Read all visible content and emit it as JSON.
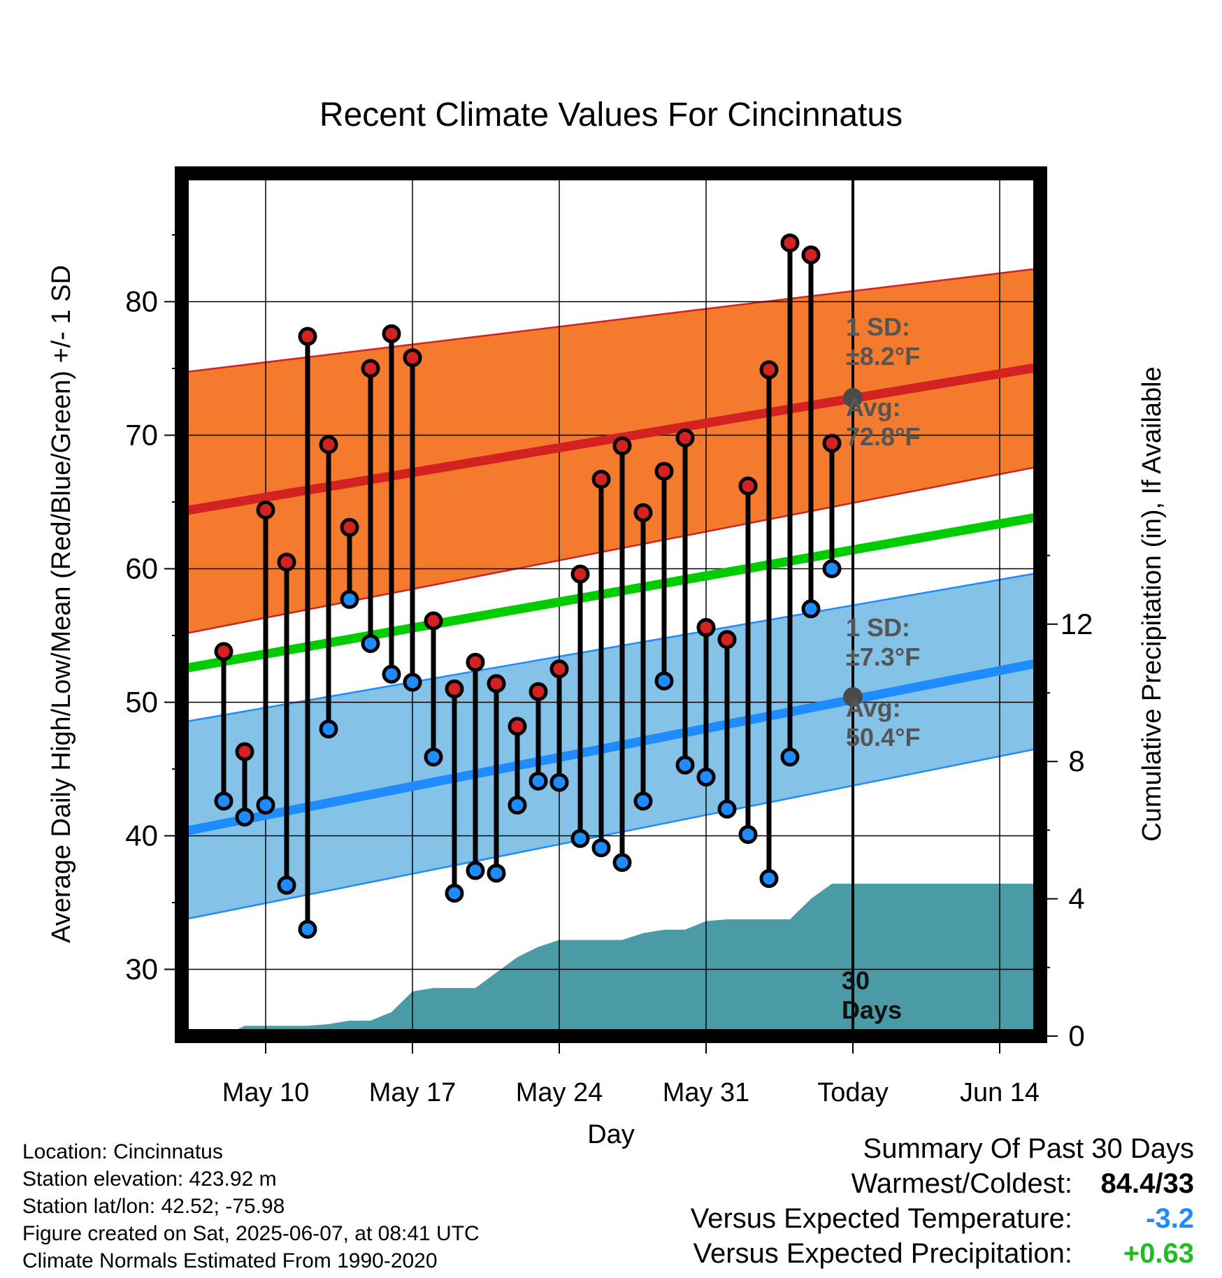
{
  "chart_data": {
    "type": "line",
    "title": "Recent Climate Values For Cincinnatus",
    "xlabel": "Day",
    "ylabel": "Average Daily High/Low/Mean (Red/Blue/Green) +/- 1 SD",
    "y2label": "Cumulative Precipitation (in), If Available",
    "ylim": [
      25,
      90
    ],
    "y2lim": [
      0,
      25
    ],
    "yticks": [
      30,
      40,
      50,
      60,
      70,
      80
    ],
    "y2ticks": [
      0,
      4,
      8,
      12
    ],
    "xlim": [
      "2025-05-06",
      "2025-06-17"
    ],
    "xtick_labels": [
      {
        "date": "2025-05-10",
        "label": "May 10"
      },
      {
        "date": "2025-05-17",
        "label": "May 17"
      },
      {
        "date": "2025-05-24",
        "label": "May 24"
      },
      {
        "date": "2025-05-31",
        "label": "May 31"
      },
      {
        "date": "2025-06-07",
        "label": "Today"
      },
      {
        "date": "2025-06-14",
        "label": "Jun 14"
      }
    ],
    "grid": true,
    "today": "2025-06-07",
    "normals": {
      "dates": [
        "2025-05-06",
        "2025-06-17"
      ],
      "avg_high": [
        64.3,
        75.4
      ],
      "avg_high_sd_upper": [
        74.7,
        82.7
      ],
      "avg_high_sd_lower": [
        55.1,
        68.0
      ],
      "avg_mean": [
        52.5,
        64.2
      ],
      "avg_low": [
        40.3,
        53.3
      ],
      "avg_low_sd_upper": [
        48.5,
        60.0
      ],
      "avg_low_sd_lower": [
        33.7,
        46.9
      ]
    },
    "annotations": {
      "high_sd": [
        "1 SD:",
        "±8.2°F"
      ],
      "high_avg": [
        "Avg:",
        "72.8°F"
      ],
      "low_sd": [
        "1 SD:",
        "±7.3°F"
      ],
      "low_avg": [
        "Avg:",
        "50.4°F"
      ],
      "window": [
        "30",
        "Days"
      ]
    },
    "today_avg_high": 72.8,
    "today_avg_low": 50.4,
    "daily": {
      "dates": [
        "2025-05-08",
        "2025-05-09",
        "2025-05-10",
        "2025-05-11",
        "2025-05-12",
        "2025-05-13",
        "2025-05-14",
        "2025-05-15",
        "2025-05-16",
        "2025-05-17",
        "2025-05-18",
        "2025-05-19",
        "2025-05-20",
        "2025-05-21",
        "2025-05-22",
        "2025-05-23",
        "2025-05-24",
        "2025-05-25",
        "2025-05-26",
        "2025-05-27",
        "2025-05-28",
        "2025-05-29",
        "2025-05-30",
        "2025-05-31",
        "2025-06-01",
        "2025-06-02",
        "2025-06-03",
        "2025-06-04",
        "2025-06-05",
        "2025-06-06"
      ],
      "high": [
        53.8,
        46.3,
        64.4,
        60.5,
        77.4,
        69.3,
        63.1,
        75.0,
        77.6,
        75.8,
        56.1,
        51.0,
        53.0,
        51.4,
        48.2,
        50.8,
        52.5,
        59.6,
        66.7,
        69.2,
        64.2,
        67.3,
        69.8,
        55.6,
        54.7,
        66.2,
        74.9,
        84.4,
        83.5,
        69.4
      ],
      "low": [
        42.6,
        41.4,
        42.3,
        36.3,
        33.0,
        48.0,
        57.7,
        54.4,
        52.1,
        51.5,
        45.9,
        35.7,
        37.4,
        37.2,
        42.3,
        44.1,
        44.0,
        39.8,
        39.1,
        38.0,
        42.6,
        51.6,
        45.3,
        44.4,
        42.0,
        40.1,
        36.8,
        45.9,
        57.0,
        60.0
      ]
    },
    "precip_cumulative": {
      "dates": [
        "2025-05-07",
        "2025-05-08",
        "2025-05-09",
        "2025-05-10",
        "2025-05-11",
        "2025-05-12",
        "2025-05-13",
        "2025-05-14",
        "2025-05-15",
        "2025-05-16",
        "2025-05-17",
        "2025-05-18",
        "2025-05-19",
        "2025-05-20",
        "2025-05-21",
        "2025-05-22",
        "2025-05-23",
        "2025-05-24",
        "2025-05-25",
        "2025-05-26",
        "2025-05-27",
        "2025-05-28",
        "2025-05-29",
        "2025-05-30",
        "2025-05-31",
        "2025-06-01",
        "2025-06-02",
        "2025-06-03",
        "2025-06-04",
        "2025-06-05",
        "2025-06-06",
        "2025-06-07"
      ],
      "values": [
        0.0,
        0.0,
        0.3,
        0.3,
        0.3,
        0.3,
        0.35,
        0.45,
        0.45,
        0.7,
        1.3,
        1.4,
        1.4,
        1.4,
        1.85,
        2.3,
        2.6,
        2.8,
        2.8,
        2.8,
        2.8,
        3.0,
        3.1,
        3.1,
        3.35,
        3.4,
        3.4,
        3.4,
        3.4,
        4.0,
        4.44,
        4.44
      ]
    },
    "colors": {
      "high_band": "#f47a2e",
      "high_line": "#d42121",
      "mean_line": "#00cc00",
      "low_band": "#85c2e8",
      "low_line": "#1e8cff",
      "precip": "#4a9ba5",
      "high_dot": "#d42121",
      "low_dot": "#1e8cff",
      "avg_marker": "#4a4a4a",
      "annotation_text": "#555555"
    }
  },
  "info": {
    "location": "Location: Cincinnatus",
    "elevation": "Station elevation: 423.92 m",
    "latlon": "Station lat/lon: 42.52; -75.98",
    "created": "Figure created on Sat, 2025-06-07, at 08:41 UTC",
    "normals": "Climate Normals Estimated From 1990-2020"
  },
  "summary": {
    "title": "Summary Of Past 30 Days",
    "warmest_label": "Warmest/Coldest:",
    "warmest_value": "84.4/33",
    "temp_label": "Versus Expected Temperature:",
    "temp_value": "-3.2",
    "temp_color": "#1e8cff",
    "precip_label": "Versus Expected Precipitation:",
    "precip_value": "+0.63",
    "precip_color": "#22bb22"
  }
}
